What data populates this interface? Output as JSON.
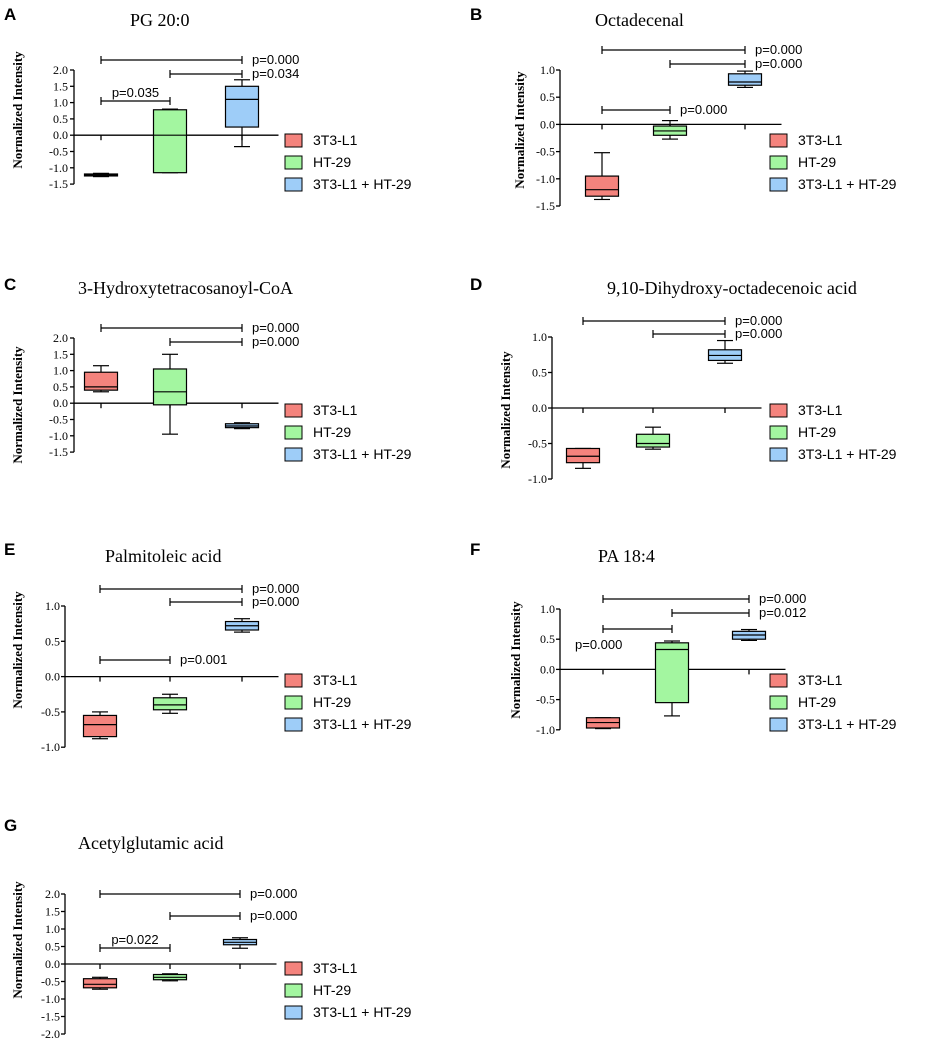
{
  "colors": {
    "3T3-L1": "#f4837d",
    "HT-29": "#a3f6a0",
    "3T3-L1 + HT-29": "#9ecdf8"
  },
  "chart_data": [
    {
      "type": "box",
      "letter": "A",
      "title": "PG 20:0",
      "ylabel": "Normalized Intensity",
      "ylim": [
        -1.5,
        2.0
      ],
      "yticks": [
        "2.0",
        "1.5",
        "1.0",
        "0.5",
        "0.0",
        "-0.5",
        "-1.0",
        "-1.5"
      ],
      "legend": [
        "3T3-L1",
        "HT-29",
        "3T3-L1 + HT-29"
      ],
      "boxes": [
        {
          "group": "3T3-L1",
          "min": -1.27,
          "q1": -1.25,
          "median": -1.22,
          "q3": -1.19,
          "max": -1.17
        },
        {
          "group": "HT-29",
          "min": -1.15,
          "q1": -1.15,
          "median": 0.0,
          "q3": 0.78,
          "max": 0.8
        },
        {
          "group": "3T3-L1 + HT-29",
          "min": -0.35,
          "q1": 0.25,
          "median": 1.1,
          "q3": 1.5,
          "max": 1.7
        }
      ],
      "comparisons": [
        {
          "from": 0,
          "to": 2,
          "label": "p=0.000"
        },
        {
          "from": 1,
          "to": 2,
          "label": "p=0.034"
        },
        {
          "from": 0,
          "to": 1,
          "label": "p=0.035"
        }
      ]
    },
    {
      "type": "box",
      "letter": "B",
      "title": "Octadecenal",
      "ylabel": "Normalized Intensity",
      "ylim": [
        -1.5,
        1.0
      ],
      "yticks": [
        "1.0",
        "0.5",
        "0.0",
        "-0.5",
        "-1.0",
        "-1.5"
      ],
      "legend": [
        "3T3-L1",
        "HT-29",
        "3T3-L1 + HT-29"
      ],
      "boxes": [
        {
          "group": "3T3-L1",
          "min": -1.38,
          "q1": -1.32,
          "median": -1.2,
          "q3": -0.95,
          "max": -0.52
        },
        {
          "group": "HT-29",
          "min": -0.27,
          "q1": -0.2,
          "median": -0.12,
          "q3": -0.03,
          "max": 0.07
        },
        {
          "group": "3T3-L1 + HT-29",
          "min": 0.68,
          "q1": 0.72,
          "median": 0.78,
          "q3": 0.93,
          "max": 0.98
        }
      ],
      "comparisons": [
        {
          "from": 0,
          "to": 2,
          "label": "p=0.000"
        },
        {
          "from": 1,
          "to": 2,
          "label": "p=0.000"
        },
        {
          "from": 0,
          "to": 1,
          "label": "p=0.000"
        }
      ]
    },
    {
      "type": "box",
      "letter": "C",
      "title": "3-Hydroxytetracosanoyl-CoA",
      "ylabel": "Normalized Intensity",
      "ylim": [
        -1.5,
        2.0
      ],
      "yticks": [
        "2.0",
        "1.5",
        "1.0",
        "0.5",
        "0.0",
        "-0.5",
        "-1.0",
        "-1.5"
      ],
      "legend": [
        "3T3-L1",
        "HT-29",
        "3T3-L1 + HT-29"
      ],
      "boxes": [
        {
          "group": "3T3-L1",
          "min": 0.35,
          "q1": 0.4,
          "median": 0.5,
          "q3": 0.95,
          "max": 1.15
        },
        {
          "group": "HT-29",
          "min": -0.95,
          "q1": -0.05,
          "median": 0.35,
          "q3": 1.05,
          "max": 1.5
        },
        {
          "group": "3T3-L1 + HT-29",
          "min": -0.78,
          "q1": -0.75,
          "median": -0.7,
          "q3": -0.63,
          "max": -0.6
        }
      ],
      "comparisons": [
        {
          "from": 0,
          "to": 2,
          "label": "p=0.000"
        },
        {
          "from": 1,
          "to": 2,
          "label": "p=0.000"
        }
      ]
    },
    {
      "type": "box",
      "letter": "D",
      "title": "9,10-Dihydroxy-octadecenoic acid",
      "ylabel": "Normalized Intensity",
      "ylim": [
        -1.0,
        1.0
      ],
      "yticks": [
        "1.0",
        "0.5",
        "0.0",
        "-0.5",
        "-1.0"
      ],
      "legend": [
        "3T3-L1",
        "HT-29",
        "3T3-L1 + HT-29"
      ],
      "boxes": [
        {
          "group": "3T3-L1",
          "min": -0.85,
          "q1": -0.77,
          "median": -0.68,
          "q3": -0.57,
          "max": -0.57
        },
        {
          "group": "HT-29",
          "min": -0.58,
          "q1": -0.55,
          "median": -0.5,
          "q3": -0.37,
          "max": -0.27
        },
        {
          "group": "3T3-L1 + HT-29",
          "min": 0.63,
          "q1": 0.67,
          "median": 0.74,
          "q3": 0.82,
          "max": 0.95
        }
      ],
      "comparisons": [
        {
          "from": 0,
          "to": 2,
          "label": "p=0.000"
        },
        {
          "from": 1,
          "to": 2,
          "label": "p=0.000"
        }
      ]
    },
    {
      "type": "box",
      "letter": "E",
      "title": "Palmitoleic acid",
      "ylabel": "Normalized Intensity",
      "ylim": [
        -1.0,
        1.0
      ],
      "yticks": [
        "1.0",
        "0.5",
        "0.0",
        "-0.5",
        "-1.0"
      ],
      "legend": [
        "3T3-L1",
        "HT-29",
        "3T3-L1 + HT-29"
      ],
      "boxes": [
        {
          "group": "3T3-L1",
          "min": -0.88,
          "q1": -0.85,
          "median": -0.68,
          "q3": -0.55,
          "max": -0.5
        },
        {
          "group": "HT-29",
          "min": -0.52,
          "q1": -0.47,
          "median": -0.4,
          "q3": -0.3,
          "max": -0.25
        },
        {
          "group": "3T3-L1 + HT-29",
          "min": 0.63,
          "q1": 0.66,
          "median": 0.72,
          "q3": 0.78,
          "max": 0.82
        }
      ],
      "comparisons": [
        {
          "from": 0,
          "to": 2,
          "label": "p=0.000"
        },
        {
          "from": 1,
          "to": 2,
          "label": "p=0.000"
        },
        {
          "from": 0,
          "to": 1,
          "label": "p=0.001"
        }
      ]
    },
    {
      "type": "box",
      "letter": "F",
      "title": "PA 18:4",
      "ylabel": "Normalized Intensity",
      "ylim": [
        -1.0,
        1.0
      ],
      "yticks": [
        "1.0",
        "0.5",
        "0.0",
        "-0.5",
        "-1.0"
      ],
      "legend": [
        "3T3-L1",
        "HT-29",
        "3T3-L1 + HT-29"
      ],
      "boxes": [
        {
          "group": "3T3-L1",
          "min": -0.98,
          "q1": -0.97,
          "median": -0.88,
          "q3": -0.8,
          "max": -0.8
        },
        {
          "group": "HT-29",
          "min": -0.77,
          "q1": -0.55,
          "median": 0.33,
          "q3": 0.44,
          "max": 0.47
        },
        {
          "group": "3T3-L1 + HT-29",
          "min": 0.48,
          "q1": 0.5,
          "median": 0.57,
          "q3": 0.63,
          "max": 0.66
        }
      ],
      "comparisons": [
        {
          "from": 0,
          "to": 2,
          "label": "p=0.000"
        },
        {
          "from": 1,
          "to": 2,
          "label": "p=0.012"
        },
        {
          "from": 0,
          "to": 1,
          "label": "p=0.000"
        }
      ]
    },
    {
      "type": "box",
      "letter": "G",
      "title": "Acetylglutamic acid",
      "ylabel": "Normalized Intensity",
      "ylim": [
        -2.0,
        2.0
      ],
      "yticks": [
        "2.0",
        "1.5",
        "1.0",
        "0.5",
        "0.0",
        "-0.5",
        "-1.0",
        "-1.5",
        "-2.0"
      ],
      "legend": [
        "3T3-L1",
        "HT-29",
        "3T3-L1 + HT-29"
      ],
      "boxes": [
        {
          "group": "3T3-L1",
          "min": -0.72,
          "q1": -0.68,
          "median": -0.58,
          "q3": -0.42,
          "max": -0.38
        },
        {
          "group": "HT-29",
          "min": -0.48,
          "q1": -0.45,
          "median": -0.38,
          "q3": -0.3,
          "max": -0.28
        },
        {
          "group": "3T3-L1 + HT-29",
          "min": 0.45,
          "q1": 0.55,
          "median": 0.62,
          "q3": 0.7,
          "max": 0.75
        }
      ],
      "comparisons": [
        {
          "from": 0,
          "to": 2,
          "label": "p=0.000"
        },
        {
          "from": 1,
          "to": 2,
          "label": "p=0.000"
        },
        {
          "from": 0,
          "to": 1,
          "label": "p=0.022"
        }
      ]
    }
  ]
}
